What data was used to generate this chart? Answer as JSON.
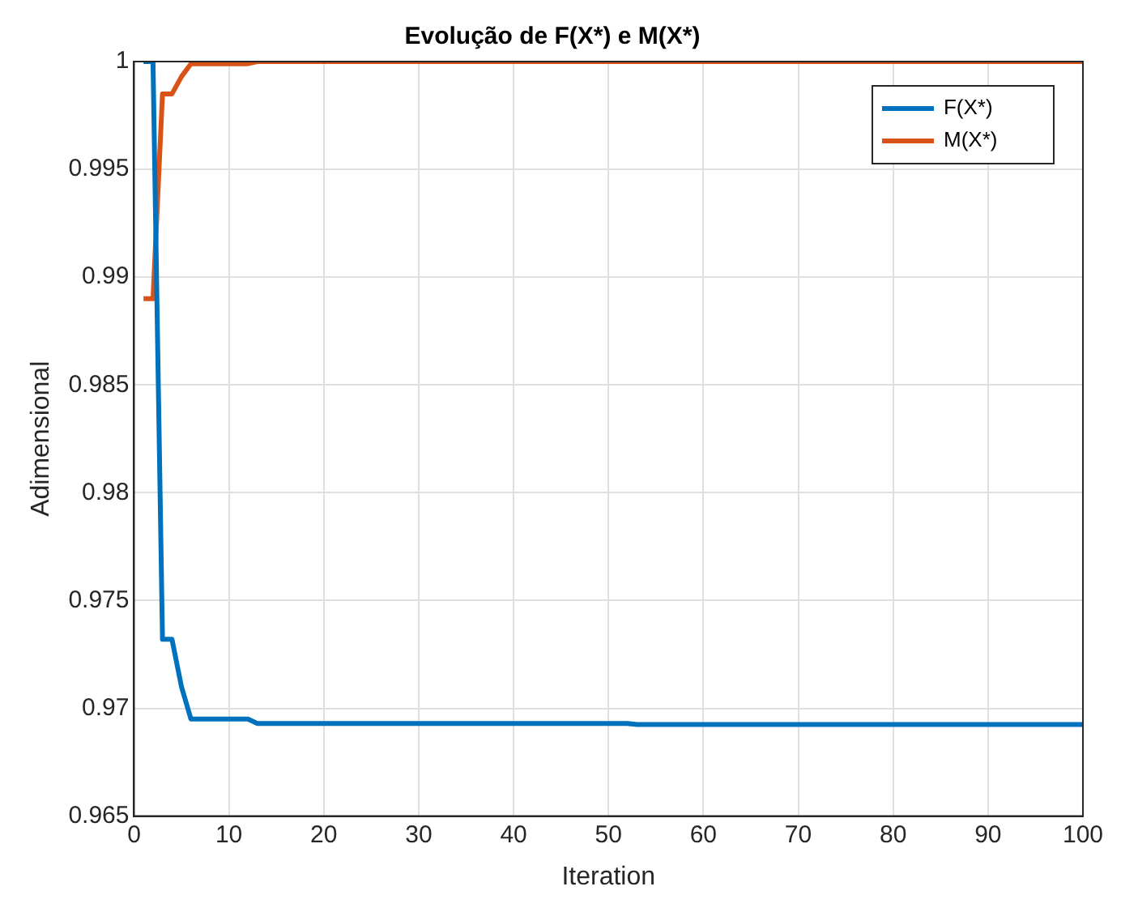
{
  "chart_data": {
    "type": "line",
    "title": "Evolução de F(X*) e M(X*)",
    "xlabel": "Iteration",
    "ylabel": "Adimensional",
    "xlim": [
      0,
      100
    ],
    "xticks": [
      0,
      10,
      20,
      30,
      40,
      50,
      60,
      70,
      80,
      90,
      100
    ],
    "ylim": [
      0.965,
      1
    ],
    "yticks": [
      0.965,
      0.97,
      0.975,
      0.98,
      0.985,
      0.99,
      0.995,
      1
    ],
    "grid": true,
    "legend": "top right",
    "marker": "none",
    "line_style": "solid",
    "series": [
      {
        "name": "F(X*)",
        "color": "#0072bd",
        "x": [
          1,
          2,
          3,
          4,
          5,
          6,
          12,
          13,
          52,
          53,
          100
        ],
        "values": [
          1,
          1,
          0.9732,
          0.9732,
          0.971,
          0.9695,
          0.9695,
          0.9693,
          0.9693,
          0.96925,
          0.96925
        ]
      },
      {
        "name": "M(X*)",
        "color": "#d95319",
        "x": [
          1,
          2,
          3,
          4,
          5,
          6,
          12,
          13,
          100
        ],
        "values": [
          0.989,
          0.989,
          0.9985,
          0.9985,
          0.9993,
          0.9999,
          0.9999,
          1,
          1
        ]
      }
    ]
  }
}
